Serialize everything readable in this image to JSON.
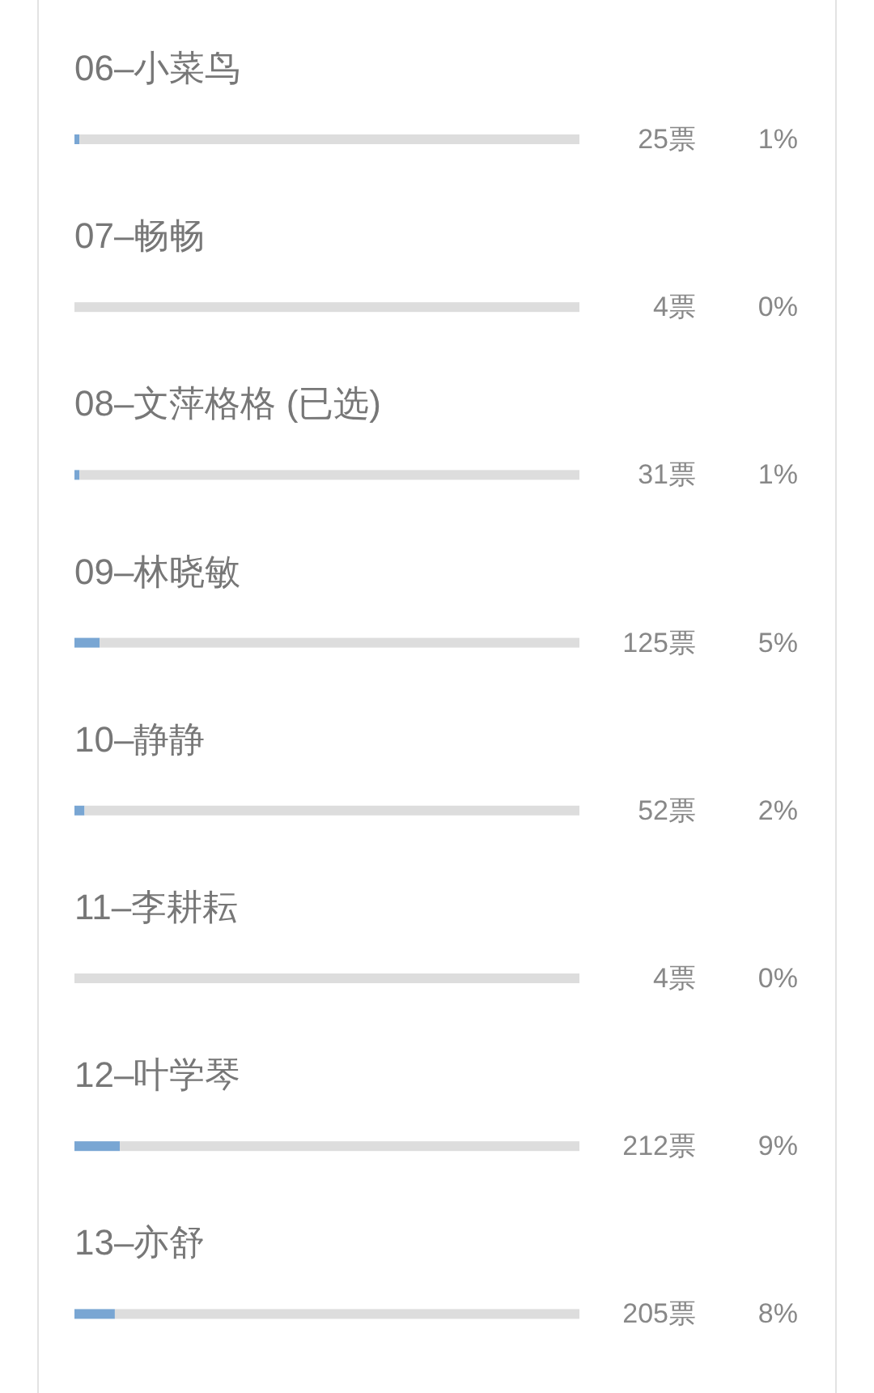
{
  "chart_data": {
    "type": "bar",
    "orientation": "horizontal",
    "stacked": true,
    "categories": [
      "06–小菜鸟",
      "07–畅畅",
      "08–文萍格格 (已选)",
      "09–林晓敏",
      "10–静静",
      "11–李耕耘",
      "12–叶学琴",
      "13–亦舒"
    ],
    "series": [
      {
        "color": "#79a6d3",
        "values": [
          1,
          0,
          1,
          5,
          2,
          0,
          9,
          8
        ],
        "value_labels": [
          "1%",
          "0%",
          "1%",
          "5%",
          "2%",
          "0%",
          "9%",
          "8%"
        ]
      },
      {
        "color": "#dddddd",
        "values": [
          99,
          100,
          99,
          95,
          98,
          100,
          91,
          92
        ]
      }
    ],
    "xlim": [
      0,
      100
    ],
    "tick_labels": "y",
    "annotations": [
      "25票",
      "4票",
      "31票",
      "125票",
      "52票",
      "4票",
      "212票",
      "205票"
    ]
  }
}
